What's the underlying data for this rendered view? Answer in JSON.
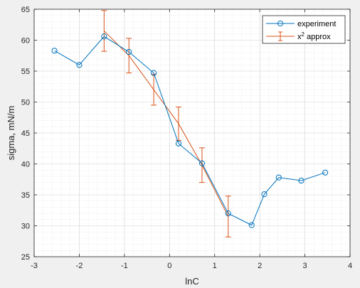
{
  "chart_data": {
    "type": "line",
    "xlabel": "lnC",
    "ylabel": "sigma, mN/m",
    "xlim": [
      -3,
      4
    ],
    "ylim": [
      25,
      65
    ],
    "x_ticks": [
      "-3",
      "-2",
      "-1",
      "0",
      "1",
      "2",
      "3",
      "4"
    ],
    "y_ticks": [
      "25",
      "30",
      "35",
      "40",
      "45",
      "50",
      "55",
      "60",
      "65"
    ],
    "grid": "on (major and minor)",
    "legend_position": "top-right",
    "colors": {
      "experiment": "#0072bd",
      "approx": "#d95319",
      "grid": "#d0d0d0",
      "background": "#ffffff"
    },
    "series": [
      {
        "name": "experiment",
        "marker": "circle",
        "x": [
          -2.55,
          -2.0,
          -1.45,
          -0.9,
          -0.35,
          0.2,
          0.72,
          1.3,
          1.82,
          2.1,
          2.42,
          2.92,
          3.45
        ],
        "y": [
          58.3,
          56.0,
          60.6,
          58.1,
          54.7,
          43.3,
          40.1,
          32.0,
          30.1,
          35.1,
          37.8,
          37.3,
          38.6
        ]
      },
      {
        "name": "x² approx",
        "legend_base": "x",
        "legend_sup": "2",
        "legend_tail": " approx",
        "x": [
          -1.45,
          -0.9,
          -0.35,
          0.2,
          0.72,
          1.3
        ],
        "y": [
          61.5,
          57.5,
          52.0,
          46.5,
          39.8,
          31.5
        ],
        "err": [
          3.3,
          2.8,
          2.5,
          2.7,
          2.8,
          3.3
        ]
      }
    ]
  }
}
